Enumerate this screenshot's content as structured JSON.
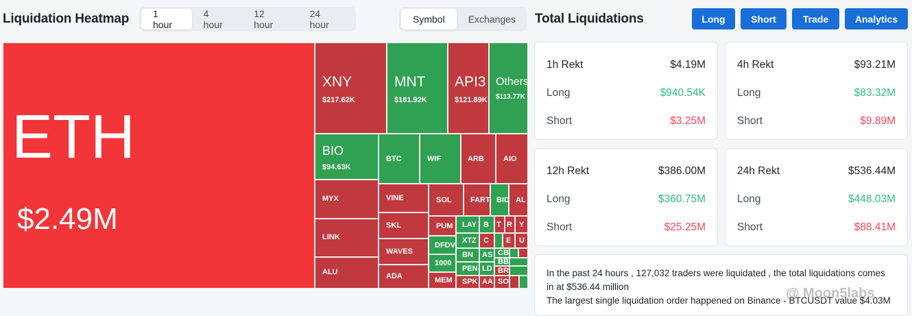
{
  "heatmap": {
    "title": "Liquidation Heatmap",
    "time_tabs": [
      "1 hour",
      "4 hour",
      "12 hour",
      "24 hour"
    ],
    "active_time": "1 hour",
    "view_tabs": [
      "Symbol",
      "Exchanges"
    ],
    "active_view": "Symbol",
    "tiles": {
      "eth": {
        "symbol": "ETH",
        "value": "$2.49M"
      },
      "xny": {
        "symbol": "XNY",
        "value": "$217.62K"
      },
      "mnt": {
        "symbol": "MNT",
        "value": "$181.92K"
      },
      "api3": {
        "symbol": "API3",
        "value": "$121.89K"
      },
      "others": {
        "symbol": "Others",
        "value": "$113.77K"
      },
      "bio": {
        "symbol": "BIO",
        "value": "$94.63K"
      },
      "btc": "BTC",
      "wif": "WIF",
      "arb": "ARB",
      "aio": "AIO",
      "myx": "MYX",
      "vine": "VINE",
      "sol": "SOL",
      "fart": "FART",
      "bid": "BID",
      "al": "AL",
      "link": "LINK",
      "skl": "SKL",
      "pum": "PUM",
      "lay": "LAY",
      "b": "B",
      "t": "T",
      "r": "R",
      "y": "Y",
      "dfdv": "DFDV",
      "xtz": "XTZ",
      "c": "C",
      "e": "E",
      "u": "U",
      "waves": "WAVES",
      "1000": "1000",
      "bnt": "BN",
      "as": "AS",
      "cb": "CB",
      "bb": "BB",
      "alu": "ALU",
      "pen": "PEN",
      "ld": "LD",
      "br": "BR",
      "ada": "ADA",
      "mem": "MEM",
      "spk": "SPK",
      "aa": "AA",
      "sc": "SO"
    }
  },
  "totals": {
    "title": "Total Liquidations",
    "buttons": [
      "Long",
      "Short",
      "Trade",
      "Analytics"
    ],
    "cards": [
      {
        "period": "1h Rekt",
        "total": "$4.19M",
        "long_label": "Long",
        "long": "$940.54K",
        "short_label": "Short",
        "short": "$3.25M"
      },
      {
        "period": "4h Rekt",
        "total": "$93.21M",
        "long_label": "Long",
        "long": "$83.32M",
        "short_label": "Short",
        "short": "$9.89M"
      },
      {
        "period": "12h Rekt",
        "total": "$386.00M",
        "long_label": "Long",
        "long": "$360.75M",
        "short_label": "Short",
        "short": "$25.25M"
      },
      {
        "period": "24h Rekt",
        "total": "$536.44M",
        "long_label": "Long",
        "long": "$448.03M",
        "short_label": "Short",
        "short": "$88.41M"
      }
    ],
    "summary_line1": "In the past 24 hours , 127,032 traders were liquidated , the total liquidations comes",
    "summary_line2": "in at $536.44 million",
    "summary_line3": "The largest single liquidation order happened on Binance - BTCUSDT value $4.03M"
  },
  "watermark": "@ Moon5labs",
  "colors": {
    "long": "#2ebd85",
    "short": "#f6465d",
    "accent": "#1a6ed8",
    "tile_red": "#c0393f",
    "tile_green": "#30a052",
    "eth_red": "#f23538"
  }
}
